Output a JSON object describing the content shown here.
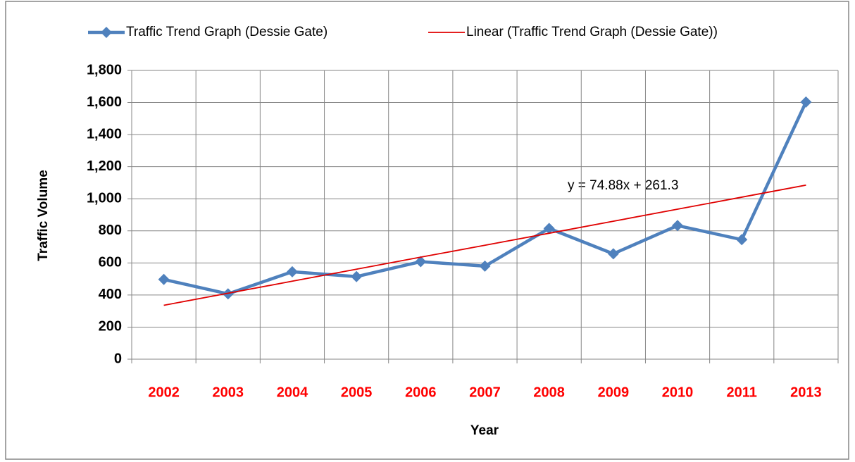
{
  "chart_data": {
    "type": "line",
    "categories": [
      "2002",
      "2003",
      "2004",
      "2005",
      "2006",
      "2007",
      "2008",
      "2009",
      "2010",
      "2011",
      "2013"
    ],
    "series": [
      {
        "name": "Traffic Trend Graph (Dessie Gate)",
        "color": "#4f81bd",
        "marker": "diamond",
        "values": [
          497,
          407,
          545,
          515,
          608,
          580,
          815,
          657,
          833,
          745,
          1603
        ]
      },
      {
        "name": "Linear (Traffic Trend Graph (Dessie Gate))",
        "color": "#e00000",
        "marker": "none",
        "values": [
          336,
          411,
          486,
          561,
          636,
          710,
          785,
          860,
          935,
          1010,
          1085
        ]
      }
    ],
    "annotation": "y = 74.88x + 261.3",
    "xlabel": "Year",
    "ylabel": "Traffic Volume",
    "ylim": [
      0,
      1800
    ],
    "yticks": [
      0,
      200,
      400,
      600,
      800,
      {
        "value": 1000,
        "label": "1,000"
      },
      {
        "value": 1200,
        "label": "1,200"
      },
      {
        "value": 1400,
        "label": "1,400"
      },
      {
        "value": 1600,
        "label": "1,600"
      },
      {
        "value": 1800,
        "label": "1,800"
      }
    ],
    "grid": true,
    "legend": "top",
    "category_color": "#ff0000"
  }
}
